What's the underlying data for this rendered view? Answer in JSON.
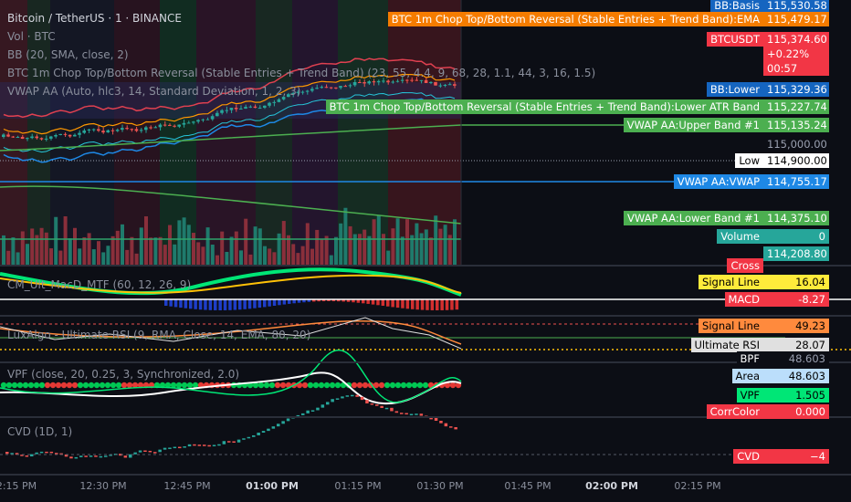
{
  "symbol": {
    "name": "Bitcoin / TetherUS · 1 · BINANCE"
  },
  "legends": {
    "vol": "Vol · BTC",
    "bb": "BB (20, SMA, close, 2)",
    "chop": "BTC 1m Chop Top/Bottom Reversal (Stable Entries + Trend Band) (23, 55, 4.4, 9, 68, 28, 1.1, 44, 3, 16, 1.5)",
    "vwap": "VWAP AA (Auto, hlc3, 14, Standard Deviation, 1, 2, 3)",
    "macd": "CM_Ult_MacD_MTF (60, 12, 26, 9)",
    "ursi": "LuxAlgo - Ultimate RSI (9, RMA, Close, 14, EMA, 80, 20)",
    "vpf": "VPF (close, 20, 0.25, 3, Synchronized, 2.0)",
    "cvd": "CVD (1D, 1)"
  },
  "main_tags": [
    {
      "label": "BB:Basis",
      "value": "115,530.58",
      "color": "#1565c0"
    },
    {
      "label": "BTC 1m Chop Top/Bottom Reversal (Stable Entries + Trend Band):EMA",
      "value": "115,479.17",
      "color": "#f57c00"
    },
    {
      "label": "BTCUSDT",
      "value": "115,374.60",
      "color": "#f23645",
      "change": "+0.22%",
      "countdown": "00:57"
    },
    {
      "label": "BB:Lower",
      "value": "115,329.36",
      "color": "#1565c0"
    },
    {
      "label": "BTC 1m Chop Top/Bottom Reversal (Stable Entries + Trend Band):Lower ATR Band",
      "value": "115,227.74",
      "color": "#4caf50"
    },
    {
      "label": "VWAP AA:Upper Band #1",
      "value": "115,135.24",
      "color": "#4caf50"
    },
    {
      "label": "",
      "value": "115,000.00",
      "color": ""
    },
    {
      "label": "Low",
      "value": "114,900.00",
      "color": "#ffffff"
    },
    {
      "label": "VWAP AA:VWAP",
      "value": "114,755.17",
      "color": "#1e88e5"
    },
    {
      "label": "VWAP AA:Lower Band #1",
      "value": "114,375.10",
      "color": "#4caf50"
    },
    {
      "label": "Volume",
      "value": "0",
      "color": "#26a69a"
    },
    {
      "label": "",
      "value": "114,208.80",
      "color": "#26a69a"
    }
  ],
  "macd_tags": [
    {
      "label": "Cross",
      "value": "",
      "color": "#f23645"
    },
    {
      "label": "Signal Line",
      "value": "16.04",
      "color": "#ffeb3b"
    },
    {
      "label": "MACD",
      "value": "-8.27",
      "color": "#f23645"
    }
  ],
  "rsi_tags": [
    {
      "label": "Signal Line",
      "value": "49.23",
      "color": "#ff8a3d"
    },
    {
      "label": "Ultimate RSI",
      "value": "28.07",
      "color": "#e0e0e0"
    }
  ],
  "vpf_tags": [
    {
      "label": "BPF",
      "value": "48.603",
      "color": ""
    },
    {
      "label": "Area",
      "value": "48.603",
      "color": "#bbdefb"
    },
    {
      "label": "VPF",
      "value": "1.505",
      "color": "#00e676"
    },
    {
      "label": "CorrColor",
      "value": "0.000",
      "color": "#f23645"
    }
  ],
  "cvd_tags": [
    {
      "label": "CVD",
      "value": "−4",
      "color": "#f23645"
    }
  ],
  "time_axis": [
    {
      "label": "2:15 PM",
      "bold": false
    },
    {
      "label": "12:30 PM",
      "bold": false
    },
    {
      "label": "12:45 PM",
      "bold": false
    },
    {
      "label": "01:00 PM",
      "bold": true
    },
    {
      "label": "01:15 PM",
      "bold": false
    },
    {
      "label": "01:30 PM",
      "bold": false
    },
    {
      "label": "01:45 PM",
      "bold": false
    },
    {
      "label": "02:00 PM",
      "bold": true
    },
    {
      "label": "02:15 PM",
      "bold": false
    }
  ]
}
